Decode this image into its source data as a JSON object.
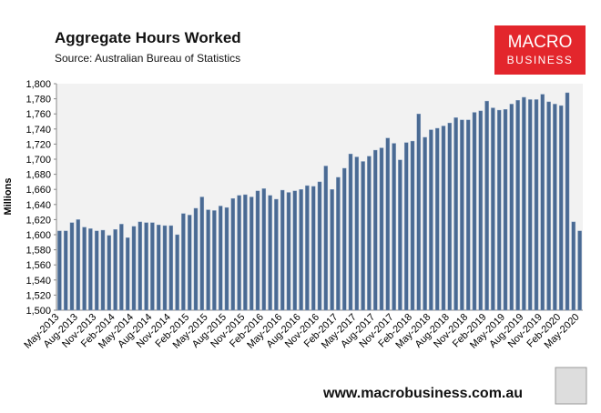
{
  "chart_data": {
    "type": "bar",
    "title": "Aggregate Hours Worked",
    "subtitle": "Source: Australian Bureau of Statistics",
    "logo": [
      "MACRO",
      "BUSINESS"
    ],
    "footer": "www.macrobusiness.com.au",
    "y_label": "Millions",
    "color": "#4a6a93",
    "categories": [
      "May-2013",
      null,
      null,
      "Aug-2013",
      null,
      null,
      "Nov-2013",
      null,
      null,
      "Feb-2014",
      null,
      null,
      "May-2014",
      null,
      null,
      "Aug-2014",
      null,
      null,
      "Nov-2014",
      null,
      null,
      "Feb-2015",
      null,
      null,
      "May-2015",
      null,
      null,
      "Aug-2015",
      null,
      null,
      "Nov-2015",
      null,
      null,
      "Feb-2016",
      null,
      null,
      "May-2016",
      null,
      null,
      "Aug-2016",
      null,
      null,
      "Nov-2016",
      null,
      null,
      "Feb-2017",
      null,
      null,
      "May-2017",
      null,
      null,
      "Aug-2017",
      null,
      null,
      "Nov-2017",
      null,
      null,
      "Feb-2018",
      null,
      null,
      "May-2018",
      null,
      null,
      "Aug-2018",
      null,
      null,
      "Nov-2018",
      null,
      null,
      "Feb-2019",
      null,
      null,
      "May-2019",
      null,
      null,
      "Aug-2019",
      null,
      null,
      "Nov-2019",
      null,
      null,
      "Feb-2020",
      null,
      null,
      "May-2020"
    ],
    "values": [
      1605,
      1605,
      1616,
      1620,
      1610,
      1608,
      1605,
      1606,
      1599,
      1607,
      1614,
      1596,
      1611,
      1617,
      1616,
      1616,
      1613,
      1612,
      1612,
      1600,
      1628,
      1626,
      1635,
      1650,
      1633,
      1632,
      1638,
      1636,
      1648,
      1652,
      1653,
      1650,
      1658,
      1661,
      1652,
      1647,
      1659,
      1656,
      1658,
      1660,
      1665,
      1664,
      1670,
      1691,
      1660,
      1676,
      1688,
      1707,
      1703,
      1697,
      1704,
      1712,
      1715,
      1728,
      1721,
      1699,
      1722,
      1724,
      1760,
      1729,
      1739,
      1741,
      1744,
      1748,
      1755,
      1752,
      1752,
      1762,
      1764,
      1777,
      1768,
      1765,
      1766,
      1773,
      1778,
      1782,
      1779,
      1779,
      1786,
      1776,
      1773,
      1771,
      1788,
      1617,
      1605
    ],
    "ylim": [
      1500,
      1800
    ],
    "yticks": [
      {
        "value": 1500,
        "label": "1,500"
      },
      {
        "value": 1520,
        "label": "1,520"
      },
      {
        "value": 1540,
        "label": "1,540"
      },
      {
        "value": 1560,
        "label": "1,560"
      },
      {
        "value": 1580,
        "label": "1,580"
      },
      {
        "value": 1600,
        "label": "1,600"
      },
      {
        "value": 1620,
        "label": "1,620"
      },
      {
        "value": 1640,
        "label": "1,640"
      },
      {
        "value": 1660,
        "label": "1,660"
      },
      {
        "value": 1680,
        "label": "1,680"
      },
      {
        "value": 1700,
        "label": "1,700"
      },
      {
        "value": 1720,
        "label": "1,720"
      },
      {
        "value": 1740,
        "label": "1,740"
      },
      {
        "value": 1760,
        "label": "1,760"
      },
      {
        "value": 1780,
        "label": "1,780"
      },
      {
        "value": 1800,
        "label": "1,800"
      }
    ]
  }
}
